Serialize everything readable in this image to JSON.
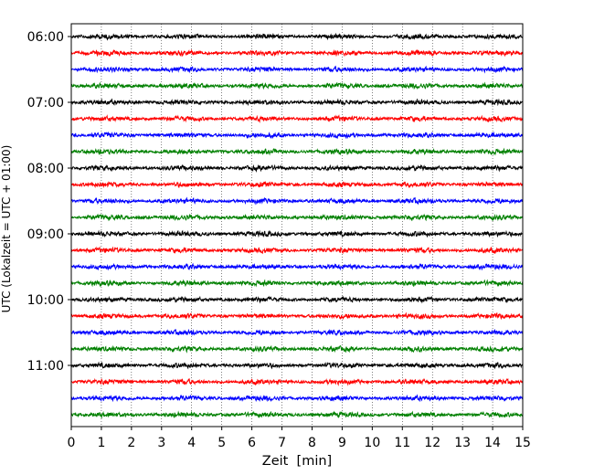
{
  "chart_data": {
    "type": "line",
    "subtype": "helicorder",
    "xlabel": "Zeit  [min]",
    "ylabel": "UTC (Lokalzeit = UTC + 01:00)",
    "xlim": [
      0,
      15
    ],
    "x_ticks": [
      0,
      1,
      2,
      3,
      4,
      5,
      6,
      7,
      8,
      9,
      10,
      11,
      12,
      13,
      14,
      15
    ],
    "x_grid": "dotted vertical lines at each minute",
    "y_tick_labels": [
      "06:00",
      "07:00",
      "08:00",
      "09:00",
      "10:00",
      "11:00"
    ],
    "trace_start": "06:00",
    "trace_interval_minutes": 15,
    "trace_count": 24,
    "trace_colors": [
      "#000000",
      "#ff0000",
      "#0000ff",
      "#008000"
    ],
    "traces": [
      {
        "start": "06:00",
        "color": "#000000"
      },
      {
        "start": "06:15",
        "color": "#ff0000"
      },
      {
        "start": "06:30",
        "color": "#0000ff"
      },
      {
        "start": "06:45",
        "color": "#008000"
      },
      {
        "start": "07:00",
        "color": "#000000"
      },
      {
        "start": "07:15",
        "color": "#ff0000"
      },
      {
        "start": "07:30",
        "color": "#0000ff"
      },
      {
        "start": "07:45",
        "color": "#008000"
      },
      {
        "start": "08:00",
        "color": "#000000"
      },
      {
        "start": "08:15",
        "color": "#ff0000"
      },
      {
        "start": "08:30",
        "color": "#0000ff"
      },
      {
        "start": "08:45",
        "color": "#008000"
      },
      {
        "start": "09:00",
        "color": "#000000"
      },
      {
        "start": "09:15",
        "color": "#ff0000"
      },
      {
        "start": "09:30",
        "color": "#0000ff"
      },
      {
        "start": "09:45",
        "color": "#008000"
      },
      {
        "start": "10:00",
        "color": "#000000"
      },
      {
        "start": "10:15",
        "color": "#ff0000"
      },
      {
        "start": "10:30",
        "color": "#0000ff"
      },
      {
        "start": "10:45",
        "color": "#008000"
      },
      {
        "start": "11:00",
        "color": "#000000"
      },
      {
        "start": "11:15",
        "color": "#ff0000"
      },
      {
        "start": "11:30",
        "color": "#0000ff"
      },
      {
        "start": "11:45",
        "color": "#008000"
      }
    ]
  }
}
